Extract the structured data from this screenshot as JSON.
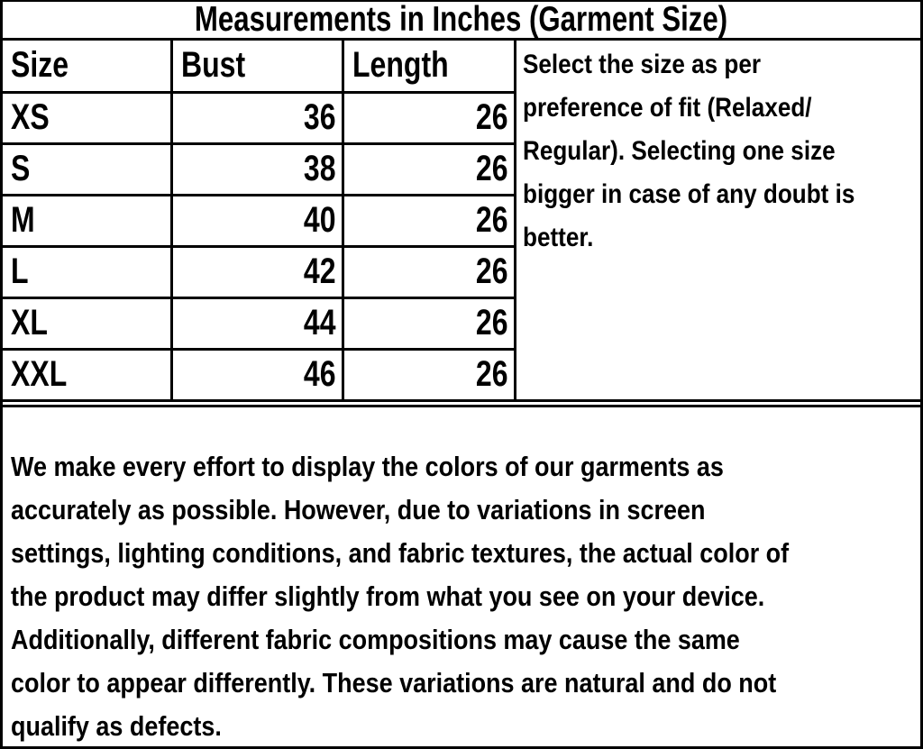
{
  "title": "Measurements in Inches (Garment Size)",
  "size_chart": {
    "columns": [
      "Size",
      "Bust",
      "Length"
    ],
    "rows": [
      {
        "size": "XS",
        "bust": "36",
        "length": "26"
      },
      {
        "size": "S",
        "bust": "38",
        "length": "26"
      },
      {
        "size": "M",
        "bust": "40",
        "length": "26"
      },
      {
        "size": "L",
        "bust": "42",
        "length": "26"
      },
      {
        "size": "XL",
        "bust": "44",
        "length": "26"
      },
      {
        "size": "XXL",
        "bust": "46",
        "length": "26"
      }
    ]
  },
  "fit_note": {
    "text": "Select the size as per preference of fit (Relaxed/ Regular). Selecting one size bigger in case of any doubt is better.",
    "lines": [
      "Select the size as per",
      "preference of fit (Relaxed/",
      "Regular). Selecting one size",
      "bigger in case of any doubt is",
      "better."
    ]
  },
  "color_disclaimer": {
    "text": "We make every effort to display the colors of our garments as accurately as possible. However, due to variations in screen settings, lighting conditions, and fabric textures, the actual color of the product may differ slightly from what you see on your device. Additionally, different fabric compositions may cause the same color to appear differently. These variations are natural and do not qualify as defects.",
    "lines": [
      "We make every effort to display the colors of our garments as",
      "accurately as possible. However, due to variations in screen",
      "settings, lighting conditions, and fabric textures, the actual color of",
      "the product may differ slightly from what you see on your device.",
      "Additionally, different fabric compositions may cause the same",
      "color to appear differently. These variations are natural and do not",
      "qualify as defects."
    ]
  },
  "colors": {
    "text": "#000000",
    "border": "#000000",
    "background": "#ffffff"
  }
}
